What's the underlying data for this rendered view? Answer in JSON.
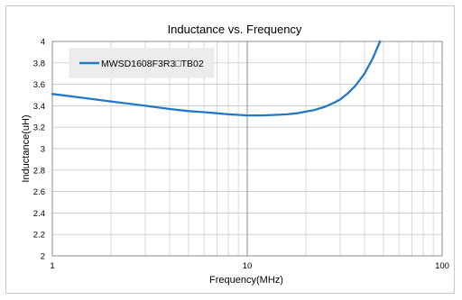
{
  "chart_data": {
    "type": "line",
    "title": "Inductance  vs. Frequency",
    "xlabel": "Frequency(MHz)",
    "ylabel": "Inductance(uH)",
    "x_scale": "log",
    "xlim": [
      1,
      100
    ],
    "ylim": [
      2,
      4
    ],
    "x_ticks": [
      1,
      10,
      100
    ],
    "x_tick_labels": [
      "1",
      "10",
      "100"
    ],
    "y_ticks": [
      2,
      2.2,
      2.4,
      2.6,
      2.8,
      3,
      3.2,
      3.4,
      3.6,
      3.8,
      4
    ],
    "y_tick_labels": [
      "2",
      "2.2",
      "2.4",
      "2.6",
      "2.8",
      "3",
      "3.2",
      "3.4",
      "3.6",
      "3.8",
      "4"
    ],
    "grid": true,
    "legend_position": "top-left",
    "series": [
      {
        "name": "MWSD1608F3R3□TB02",
        "color": "#2478c8",
        "x": [
          1,
          1.5,
          2,
          3,
          4,
          5,
          6,
          7,
          8,
          9,
          10,
          11,
          12,
          14,
          16,
          18,
          20,
          22,
          25,
          28,
          30,
          33,
          36,
          40,
          44,
          48
        ],
        "y": [
          3.51,
          3.47,
          3.44,
          3.4,
          3.37,
          3.35,
          3.34,
          3.33,
          3.32,
          3.315,
          3.31,
          3.31,
          3.31,
          3.315,
          3.32,
          3.33,
          3.345,
          3.36,
          3.39,
          3.43,
          3.46,
          3.52,
          3.59,
          3.7,
          3.84,
          4.0
        ]
      }
    ]
  }
}
